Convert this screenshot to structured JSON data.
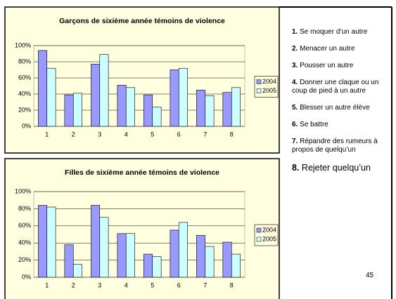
{
  "chart_data": [
    {
      "type": "bar",
      "title": "Garçons de sixième année témoins de violence",
      "categories": [
        "1",
        "2",
        "3",
        "4",
        "5",
        "6",
        "7",
        "8"
      ],
      "series": [
        {
          "name": "2004",
          "color": "#9999ff",
          "values": [
            94,
            39,
            77,
            51,
            39,
            70,
            45,
            42
          ]
        },
        {
          "name": "2005",
          "color": "#ccffff",
          "values": [
            72,
            41,
            89,
            48,
            24,
            72,
            38,
            48
          ]
        }
      ],
      "ylim": [
        0,
        100
      ],
      "yticks": [
        {
          "value": 0,
          "label": "0%"
        },
        {
          "value": 20,
          "label": "20%"
        },
        {
          "value": 40,
          "label": "40%"
        },
        {
          "value": 60,
          "label": "60%"
        },
        {
          "value": 80,
          "label": "80%"
        },
        {
          "value": 100,
          "label": "100%"
        }
      ],
      "grid": true,
      "legend": "right"
    },
    {
      "type": "bar",
      "title": "Filles de sixième année témoins de violence",
      "categories": [
        "1",
        "2",
        "3",
        "4",
        "5",
        "6",
        "7",
        "8"
      ],
      "series": [
        {
          "name": "2004",
          "color": "#9999ff",
          "values": [
            84,
            38,
            84,
            51,
            27,
            55,
            49,
            41
          ]
        },
        {
          "name": "2005",
          "color": "#ccffff",
          "values": [
            82,
            15,
            70,
            51,
            24,
            64,
            36,
            27
          ]
        }
      ],
      "ylim": [
        0,
        100
      ],
      "yticks": [
        {
          "value": 0,
          "label": "0%"
        },
        {
          "value": 20,
          "label": "20%"
        },
        {
          "value": 40,
          "label": "40%"
        },
        {
          "value": 60,
          "label": "60%"
        },
        {
          "value": 80,
          "label": "80%"
        },
        {
          "value": 100,
          "label": "100%"
        }
      ],
      "grid": true,
      "legend": "right"
    }
  ],
  "notes": [
    {
      "number": "1.",
      "text": "Se moquer d’un autre"
    },
    {
      "number": "2.",
      "text": "Menacer un autre"
    },
    {
      "number": "3.",
      "text": "Pousser un autre"
    },
    {
      "number": "4.",
      "text": "Donner une claque ou un coup de pied à un autre"
    },
    {
      "number": "5.",
      "text": "Blesser un autre élève"
    },
    {
      "number": "6.",
      "text": "Se battre"
    },
    {
      "number": "7.",
      "text": "Répandre des rumeurs à propos de quelqu’un"
    },
    {
      "number": "8.",
      "text": "Rejeter quelqu’un"
    }
  ],
  "page_number": "45"
}
